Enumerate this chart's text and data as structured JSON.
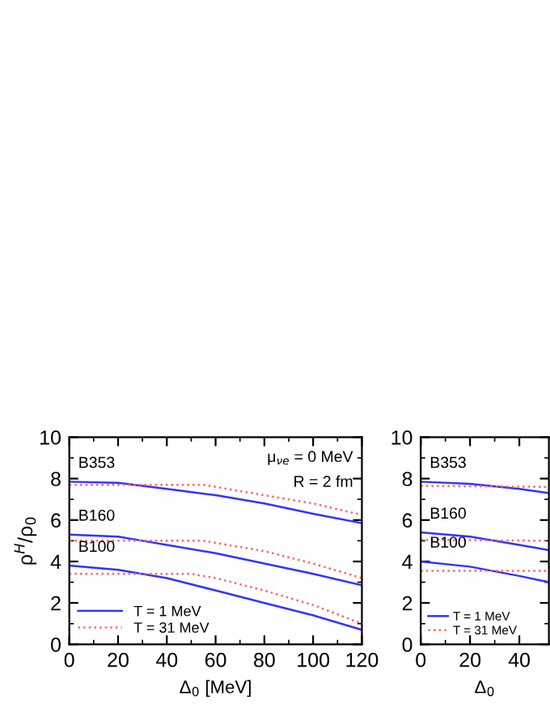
{
  "chart_data": [
    {
      "type": "line",
      "ylabel": "ρ$^{H}$/ρ$_{0}$",
      "xlabel": "Δ$_{0}$ [MeV]",
      "xlim": [
        0,
        120
      ],
      "ylim": [
        0,
        10
      ],
      "xticks": [
        0,
        20,
        40,
        60,
        80,
        100,
        120
      ],
      "yticks": [
        0,
        2,
        4,
        6,
        8,
        10
      ],
      "grid": false,
      "legend": "bottom left",
      "annotations": [
        "B353",
        "B160",
        "B100",
        "μ$_{νe}$ = 0 MeV",
        "R = 2 fm"
      ],
      "series": [
        {
          "name": "T = 1 MeV",
          "color": "#3333ff",
          "line_style": "solid",
          "x": [
            0,
            20,
            40,
            60,
            80,
            100,
            120
          ],
          "values": [
            7.85,
            7.8,
            7.5,
            7.2,
            6.8,
            6.3,
            5.85
          ]
        },
        {
          "name": "T = 31 MeV",
          "color": "#ff6666",
          "line_style": "dotted",
          "x": [
            0,
            20,
            40,
            55,
            60,
            80,
            100,
            120
          ],
          "values": [
            7.7,
            7.7,
            7.7,
            7.7,
            7.6,
            7.2,
            6.8,
            6.25
          ]
        },
        {
          "color": "#3333ff",
          "line_style": "solid",
          "x": [
            0,
            20,
            30,
            40,
            60,
            80,
            100,
            120
          ],
          "values": [
            5.3,
            5.2,
            5.0,
            4.8,
            4.4,
            3.9,
            3.4,
            2.85
          ]
        },
        {
          "color": "#ff6666",
          "line_style": "dotted",
          "x": [
            0,
            55,
            60,
            80,
            100,
            120
          ],
          "values": [
            5.0,
            5.0,
            4.9,
            4.5,
            3.9,
            3.2
          ]
        },
        {
          "color": "#3333ff",
          "line_style": "solid",
          "x": [
            0,
            20,
            40,
            60,
            80,
            100,
            120
          ],
          "values": [
            3.8,
            3.6,
            3.2,
            2.6,
            2.0,
            1.4,
            0.7
          ]
        },
        {
          "color": "#ff6666",
          "line_style": "dotted",
          "x": [
            0,
            50,
            60,
            80,
            100,
            120
          ],
          "values": [
            3.4,
            3.4,
            3.2,
            2.6,
            1.9,
            1.0
          ]
        }
      ]
    },
    {
      "type": "line",
      "xlabel": "Δ$_{0}$",
      "xlim": [
        0,
        52
      ],
      "ylim": [
        0,
        10
      ],
      "xticks": [
        0,
        20,
        40
      ],
      "yticks": [
        0,
        2,
        4,
        6,
        8,
        10
      ],
      "grid": false,
      "legend": "bottom left",
      "annotations": [
        "B353",
        "B160",
        "B100"
      ],
      "series": [
        {
          "name": "T = 1 MeV",
          "color": "#3333ff",
          "line_style": "solid",
          "x": [
            0,
            20,
            40,
            52
          ],
          "values": [
            7.85,
            7.75,
            7.5,
            7.3
          ]
        },
        {
          "name": "T = 31 MeV",
          "color": "#ff6666",
          "line_style": "dotted",
          "x": [
            0,
            52
          ],
          "values": [
            7.65,
            7.6
          ]
        },
        {
          "color": "#3333ff",
          "line_style": "solid",
          "x": [
            0,
            20,
            40,
            52
          ],
          "values": [
            5.4,
            5.2,
            4.8,
            4.55
          ]
        },
        {
          "color": "#ff6666",
          "line_style": "dotted",
          "x": [
            0,
            52
          ],
          "values": [
            5.05,
            5.0
          ]
        },
        {
          "color": "#3333ff",
          "line_style": "solid",
          "x": [
            0,
            20,
            40,
            52
          ],
          "values": [
            4.0,
            3.75,
            3.3,
            3.0
          ]
        },
        {
          "color": "#ff6666",
          "line_style": "dotted",
          "x": [
            0,
            52
          ],
          "values": [
            3.55,
            3.55
          ]
        }
      ]
    }
  ]
}
